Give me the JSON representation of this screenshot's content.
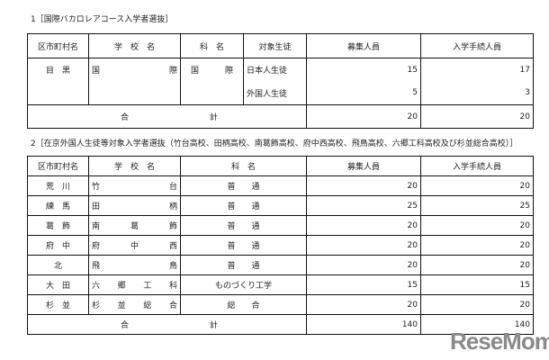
{
  "section1": {
    "caption": "1［国際バカロレアコース入学者選抜］",
    "headers": [
      "区市町村名",
      "学　校　名",
      "科　名",
      "対象生徒",
      "募集人員",
      "入学手続人員"
    ],
    "row": {
      "ward": "目　黒",
      "school": [
        "国",
        "際"
      ],
      "course": [
        "国",
        "際"
      ],
      "subrows": [
        {
          "target": "日本人生徒",
          "capacity": "15",
          "enrolled": "17"
        },
        {
          "target": "外国人生徒",
          "capacity": "5",
          "enrolled": "3"
        }
      ]
    },
    "total": {
      "label": [
        "合",
        "計"
      ],
      "capacity": "20",
      "enrolled": "20"
    }
  },
  "section2": {
    "caption": "2［在京外国人生徒等対象入学者選抜（竹台高校、田柄高校、南葛飾高校、府中西高校、飛鳥高校、六郷工科高校及び杉並総合高校）］",
    "headers": [
      "区市町村名",
      "学　校　名",
      "科　名",
      "募集人員",
      "入学手続人員"
    ],
    "rows": [
      {
        "ward": "荒　川",
        "school": [
          "竹",
          "台"
        ],
        "course": "普　　通",
        "capacity": "20",
        "enrolled": "20"
      },
      {
        "ward": "練　馬",
        "school": [
          "田",
          "柄"
        ],
        "course": "普　　通",
        "capacity": "25",
        "enrolled": "25"
      },
      {
        "ward": "葛　飾",
        "school": [
          "南",
          "葛",
          "飾"
        ],
        "course": "普　　通",
        "capacity": "20",
        "enrolled": "20"
      },
      {
        "ward": "府　中",
        "school": [
          "府",
          "中",
          "西"
        ],
        "course": "普　　通",
        "capacity": "20",
        "enrolled": "20"
      },
      {
        "ward": "北",
        "school": [
          "飛",
          "鳥"
        ],
        "course": "普　　通",
        "capacity": "20",
        "enrolled": "20"
      },
      {
        "ward": "大　田",
        "school": [
          "六",
          "郷",
          "工",
          "科"
        ],
        "course": "ものづくり工学",
        "capacity": "15",
        "enrolled": "15"
      },
      {
        "ward": "杉　並",
        "school": [
          "杉",
          "並",
          "総",
          "合"
        ],
        "course": "総　　合",
        "capacity": "20",
        "enrolled": "20"
      }
    ],
    "total": {
      "label": [
        "合",
        "計"
      ],
      "capacity": "140",
      "enrolled": "140"
    }
  },
  "watermark": "ReseMom"
}
